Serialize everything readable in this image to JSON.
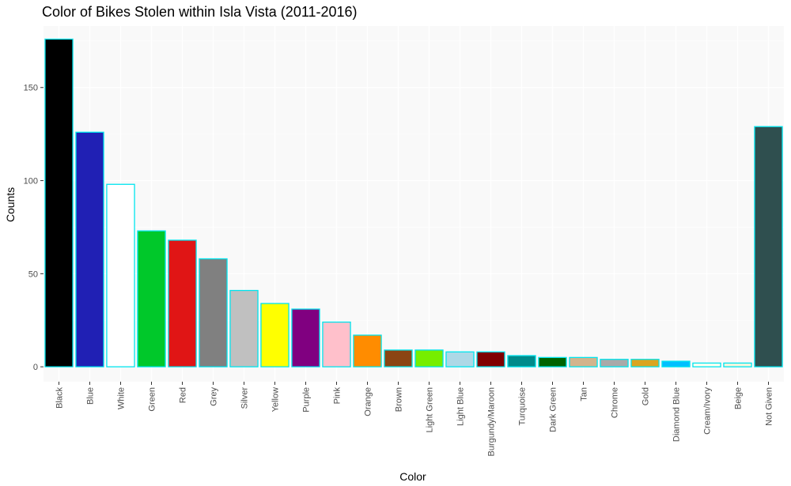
{
  "chart_data": {
    "type": "bar",
    "title": "Color of Bikes Stolen within Isla Vista (2011-2016)",
    "xlabel": "Color",
    "ylabel": "Counts",
    "ylim": [
      -8,
      183
    ],
    "yticks": [
      0,
      50,
      100,
      150
    ],
    "grid": true,
    "legend": "none",
    "categories": [
      "Black",
      "Blue",
      "White",
      "Green",
      "Red",
      "Grey",
      "Silver",
      "Yellow",
      "Purple",
      "Pink",
      "Orange",
      "Brown",
      "Light Green",
      "Light Blue",
      "Burgundy/Maroon",
      "Turquoise",
      "Dark Green",
      "Tan",
      "Chrome",
      "Gold",
      "Diamond Blue",
      "Cream/Ivory",
      "Beige",
      "Not Given"
    ],
    "values": [
      176,
      126,
      98,
      73,
      68,
      58,
      41,
      34,
      31,
      24,
      17,
      9,
      9,
      8,
      8,
      6,
      5,
      5,
      4,
      4,
      3,
      2,
      2,
      129
    ],
    "bar_colors": [
      "#000000",
      "#2020b4",
      "#ffffff",
      "#00c82a",
      "#e01515",
      "#808080",
      "#c0c0c0",
      "#ffff00",
      "#800080",
      "#ffc0cb",
      "#ff8c00",
      "#8b4513",
      "#76ee00",
      "#add8e6",
      "#800000",
      "#008b8b",
      "#006400",
      "#d2b48c",
      "#a9a9a9",
      "#daa520",
      "#00bfff",
      "#fffff0",
      "#f5f5dc",
      "#2f4f4f"
    ],
    "bar_outline": "#00e5ee",
    "panel_background": "#f9f9f9",
    "grid_color": "#ffffff"
  }
}
